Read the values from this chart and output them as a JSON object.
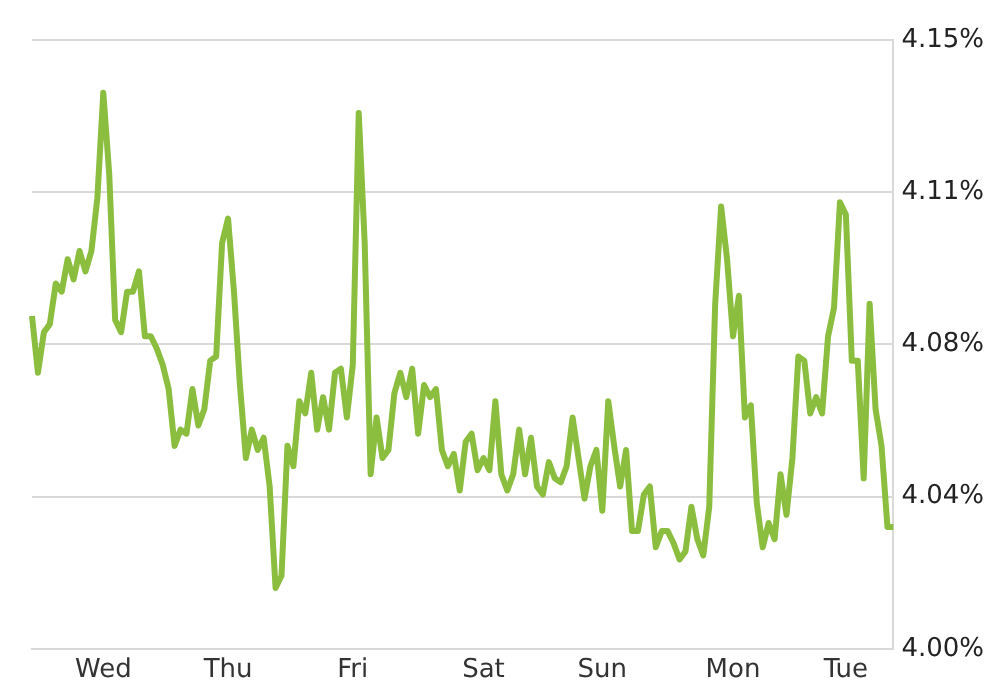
{
  "chart_data": {
    "type": "line",
    "categories": [
      null,
      null,
      null,
      null,
      null,
      null,
      null,
      null,
      null,
      null,
      null,
      null,
      "Wed",
      null,
      null,
      null,
      null,
      null,
      null,
      null,
      null,
      null,
      null,
      null,
      null,
      null,
      null,
      null,
      null,
      null,
      null,
      null,
      null,
      "Thu",
      null,
      null,
      null,
      null,
      null,
      null,
      null,
      null,
      null,
      null,
      null,
      null,
      null,
      null,
      null,
      null,
      null,
      null,
      null,
      null,
      "Fri",
      null,
      null,
      null,
      null,
      null,
      null,
      null,
      null,
      null,
      null,
      null,
      null,
      null,
      null,
      null,
      null,
      null,
      null,
      null,
      null,
      null,
      "Sat",
      null,
      null,
      null,
      null,
      null,
      null,
      null,
      null,
      null,
      null,
      null,
      null,
      null,
      null,
      null,
      null,
      null,
      null,
      null,
      "Sun",
      null,
      null,
      null,
      null,
      null,
      null,
      null,
      null,
      null,
      null,
      null,
      null,
      null,
      null,
      null,
      null,
      null,
      null,
      null,
      null,
      null,
      "Mon",
      null,
      null,
      null,
      null,
      null,
      null,
      null,
      null,
      null,
      null,
      null,
      null,
      null,
      null,
      null,
      null,
      null,
      null,
      "Tue",
      null,
      null,
      null,
      null,
      null,
      null,
      null,
      null
    ],
    "series": [
      {
        "color": "#8bbd3f",
        "values": [
          4.082,
          4.068,
          4.078,
          4.08,
          4.09,
          4.088,
          4.096,
          4.091,
          4.098,
          4.093,
          4.098,
          4.111,
          4.137,
          4.117,
          4.081,
          4.078,
          4.088,
          4.088,
          4.093,
          4.077,
          4.077,
          4.074,
          4.07,
          4.064,
          4.05,
          4.054,
          4.053,
          4.064,
          4.055,
          4.059,
          4.071,
          4.072,
          4.1,
          4.106,
          4.088,
          4.065,
          4.047,
          4.054,
          4.049,
          4.052,
          4.04,
          4.015,
          4.018,
          4.05,
          4.045,
          4.061,
          4.058,
          4.068,
          4.054,
          4.062,
          4.054,
          4.068,
          4.069,
          4.057,
          4.07,
          4.132,
          4.1,
          4.043,
          4.057,
          4.047,
          4.049,
          4.063,
          4.068,
          4.062,
          4.069,
          4.053,
          4.065,
          4.062,
          4.064,
          4.049,
          4.045,
          4.048,
          4.039,
          4.051,
          4.053,
          4.044,
          4.047,
          4.044,
          4.061,
          4.043,
          4.039,
          4.043,
          4.054,
          4.043,
          4.052,
          4.04,
          4.038,
          4.046,
          4.042,
          4.041,
          4.045,
          4.057,
          4.047,
          4.037,
          4.045,
          4.049,
          4.034,
          4.061,
          4.05,
          4.04,
          4.049,
          4.029,
          4.029,
          4.038,
          4.04,
          4.025,
          4.029,
          4.029,
          4.026,
          4.022,
          4.024,
          4.035,
          4.027,
          4.023,
          4.035,
          4.085,
          4.109,
          4.096,
          4.077,
          4.087,
          4.057,
          4.06,
          4.036,
          4.025,
          4.031,
          4.027,
          4.043,
          4.033,
          4.047,
          4.072,
          4.071,
          4.058,
          4.062,
          4.058,
          4.077,
          4.084,
          4.11,
          4.107,
          4.071,
          4.071,
          4.042,
          4.085,
          4.059,
          4.05,
          4.03,
          4.03
        ]
      }
    ],
    "ylim": [
      4.0,
      4.15
    ],
    "yticks": [
      {
        "value": 4.0,
        "label": "4.00%"
      },
      {
        "value": 4.0375,
        "label": "4.04%"
      },
      {
        "value": 4.075,
        "label": "4.08%"
      },
      {
        "value": 4.1125,
        "label": "4.11%"
      },
      {
        "value": 4.15,
        "label": "4.15%"
      }
    ],
    "grid": "y",
    "legend": false,
    "marker": "none",
    "line_style": "solid"
  }
}
